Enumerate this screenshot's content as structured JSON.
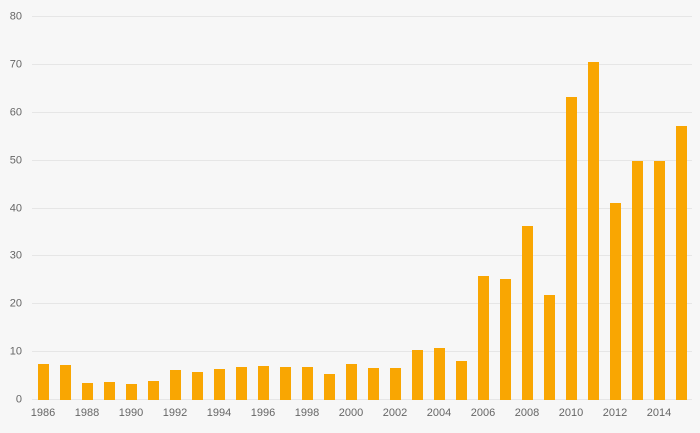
{
  "chart_data": {
    "type": "bar",
    "title": "",
    "xlabel": "",
    "ylabel": "",
    "categories": [
      "1986",
      "1987",
      "1988",
      "1989",
      "1990",
      "1991",
      "1992",
      "1993",
      "1994",
      "1995",
      "1996",
      "1997",
      "1998",
      "1999",
      "2000",
      "2001",
      "2002",
      "2003",
      "2004",
      "2005",
      "2006",
      "2007",
      "2008",
      "2009",
      "2010",
      "2011",
      "2012",
      "2013",
      "2014",
      "2015"
    ],
    "values": [
      7.6,
      7.4,
      3.6,
      3.7,
      3.4,
      3.9,
      6.2,
      5.9,
      6.4,
      6.8,
      7.2,
      6.8,
      6.9,
      5.4,
      7.5,
      6.7,
      6.7,
      10.5,
      10.8,
      8.1,
      25.8,
      25.2,
      36.3,
      22,
      63.2,
      70.6,
      41.2,
      50,
      50,
      57.2
    ],
    "ylim": [
      0,
      80
    ],
    "y_ticks": [
      0,
      10,
      20,
      30,
      40,
      50,
      60,
      70,
      80
    ],
    "x_tick_labels": [
      "1986",
      "1988",
      "1990",
      "1992",
      "1994",
      "1996",
      "1998",
      "2000",
      "2002",
      "2004",
      "2006",
      "2008",
      "2010",
      "2012",
      "2014"
    ],
    "grid": true,
    "legend_position": "none",
    "bar_color": "#F9A602",
    "background_color": "#F7F7F7",
    "gridline_color": "#E6E6E6",
    "tick_label_color": "#666666"
  }
}
